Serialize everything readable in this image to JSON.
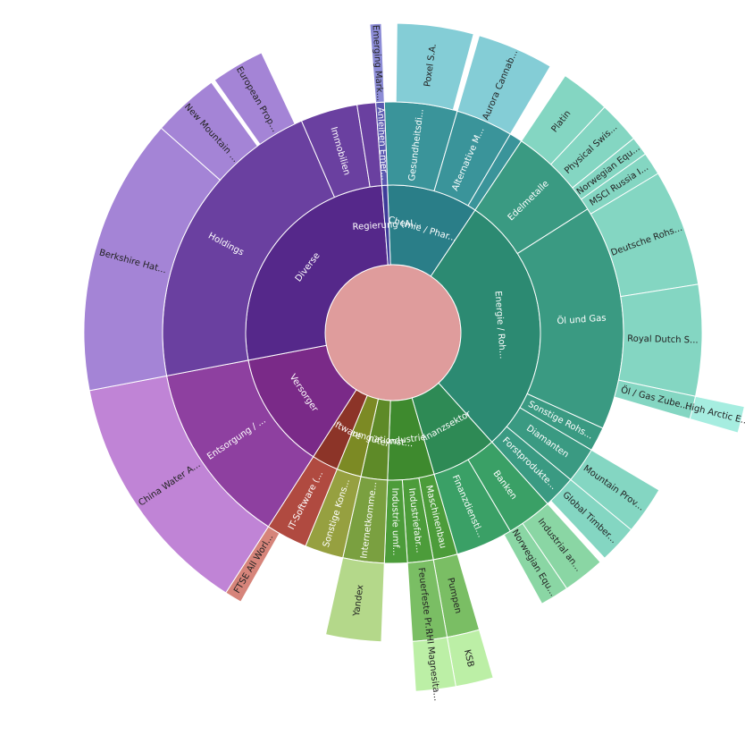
{
  "chart_data": {
    "type": "sunburst",
    "center_color": "#df9c9c",
    "nodes": [
      {
        "id": "energie",
        "name": "Energie / Roh...",
        "parent": null,
        "start": 0.0,
        "end": 0.375,
        "color": "#2c8a72",
        "label": "Energie / Roh..."
      },
      {
        "id": "finanz",
        "name": "Finanzsektor",
        "parent": null,
        "start": 0.375,
        "end": 0.445,
        "color": "#2e8a55",
        "label": "Finanzsektor"
      },
      {
        "id": "industrie",
        "name": "Industrie",
        "parent": null,
        "start": 0.445,
        "end": 0.497,
        "color": "#3e8a2e",
        "label": "Industrie"
      },
      {
        "id": "info",
        "name": "Informationst...",
        "parent": null,
        "start": 0.497,
        "end": 0.525,
        "color": "#5e8a28",
        "label": "Informationst..."
      },
      {
        "id": "konsum",
        "name": "Konsumgüter",
        "parent": null,
        "start": 0.525,
        "end": 0.56,
        "color": "#7c8a24",
        "label": "Konsumgüter"
      },
      {
        "id": "software",
        "name": "Software",
        "parent": null,
        "start": 0.56,
        "end": 0.59,
        "color": "#8c3428",
        "label": "Software"
      },
      {
        "id": "versorger",
        "name": "Versorger",
        "parent": null,
        "start": 0.59,
        "end": 0.715,
        "color": "#7a2a88",
        "label": "Versorger"
      },
      {
        "id": "diverse",
        "name": "Diverse",
        "parent": null,
        "start": 0.715,
        "end": 0.988,
        "color": "#55288a",
        "label": "Diverse"
      },
      {
        "id": "regierung",
        "name": "Regierung (Al...",
        "parent": null,
        "start": 0.988,
        "end": 1.0,
        "color": "#3e3c9a",
        "label": "Regierung (Al..."
      },
      {
        "id": "chemie",
        "name": "Chemie / Phar...",
        "parent": null,
        "start": 0.0,
        "end": 0.0,
        "color": "#2a7e88",
        "label": ""
      },
      {
        "id": "oel_gas",
        "name": "Öl und Gas",
        "parent": "energie",
        "start": 0.04,
        "end": 0.318,
        "color": "#3a9a82",
        "label": "Öl und Gas"
      },
      {
        "id": "edelmetalle",
        "name": "Edelmetalle",
        "parent": "energie",
        "start": 0.0,
        "end": 0.04,
        "color": "#3a9a82",
        "label": "Edelmetalle"
      },
      {
        "id": "sonst_rohs",
        "name": "Sonstige Rohs...",
        "parent": "energie",
        "start": 0.318,
        "end": 0.335,
        "color": "#3a9a82",
        "label": "Sonstige Rohs..."
      },
      {
        "id": "diamanten",
        "name": "Diamanten",
        "parent": "energie",
        "start": 0.335,
        "end": 0.36,
        "color": "#3a9a82",
        "label": "Diamanten"
      },
      {
        "id": "forst",
        "name": "Forstprodukte...",
        "parent": "energie",
        "start": 0.36,
        "end": 0.375,
        "color": "#3a9a82",
        "label": "Forstprodukte..."
      }
    ],
    "rings": {
      "ring1": [
        {
          "name": "Chemie / Phar...",
          "a0": -0.006,
          "a1": 0.094,
          "color": "#2a7e88"
        },
        {
          "name": "Energie / Roh...",
          "a0": 0.094,
          "a1": 0.383,
          "color": "#2c8a72"
        },
        {
          "name": "Finanzsektor",
          "a0": 0.383,
          "a1": 0.455,
          "color": "#2e8a55"
        },
        {
          "name": "Industrie",
          "a0": 0.455,
          "a1": 0.506,
          "color": "#3e8a2e"
        },
        {
          "name": "Informationst...",
          "a0": 0.506,
          "a1": 0.535,
          "color": "#5e8a28"
        },
        {
          "name": "Konsumgüter",
          "a0": 0.535,
          "a1": 0.562,
          "color": "#7c8a24"
        },
        {
          "name": "Software",
          "a0": 0.562,
          "a1": 0.591,
          "color": "#8c3428"
        },
        {
          "name": "Versorger",
          "a0": 0.591,
          "a1": 0.72,
          "color": "#7a2a88"
        },
        {
          "name": "Diverse",
          "a0": 0.72,
          "a1": 0.988,
          "color": "#55288a"
        },
        {
          "name": "Regierung (Al...",
          "a0": 0.988,
          "a1": 0.994,
          "color": "#3e3c9a"
        }
      ],
      "ring2": [
        {
          "name": "Gesundheitsdi...",
          "a0": -0.006,
          "a1": 0.045,
          "color": "#3a949a"
        },
        {
          "name": "Alternative M...",
          "a0": 0.045,
          "a1": 0.085,
          "color": "#3a949a"
        },
        {
          "name": "",
          "a0": 0.085,
          "a1": 0.094,
          "color": "#3a949a"
        },
        {
          "name": "Edelmetalle",
          "a0": 0.094,
          "a1": 0.16,
          "color": "#3a9a82"
        },
        {
          "name": "Öl und Gas",
          "a0": 0.16,
          "a1": 0.318,
          "color": "#3a9a82"
        },
        {
          "name": "Sonstige Rohs...",
          "a0": 0.318,
          "a1": 0.335,
          "color": "#3a9a82"
        },
        {
          "name": "Diamanten",
          "a0": 0.335,
          "a1": 0.36,
          "color": "#3a9a82"
        },
        {
          "name": "Forstprodukte...",
          "a0": 0.36,
          "a1": 0.383,
          "color": "#3a9a82"
        },
        {
          "name": "Banken",
          "a0": 0.383,
          "a1": 0.415,
          "color": "#3aa066"
        },
        {
          "name": "Finanzdienstl...",
          "a0": 0.415,
          "a1": 0.455,
          "color": "#3aa066"
        },
        {
          "name": "Maschinenbau",
          "a0": 0.455,
          "a1": 0.472,
          "color": "#4c9c3a"
        },
        {
          "name": "Industriefabr...",
          "a0": 0.472,
          "a1": 0.49,
          "color": "#4c9c3a"
        },
        {
          "name": "Industrie umf...",
          "a0": 0.49,
          "a1": 0.506,
          "color": "#4c9c3a"
        },
        {
          "name": "Internetkomme...",
          "a0": 0.506,
          "a1": 0.535,
          "color": "#7aa040"
        },
        {
          "name": "Sonstige Kons...",
          "a0": 0.535,
          "a1": 0.562,
          "color": "#96a040"
        },
        {
          "name": "IT-Software (...",
          "a0": 0.562,
          "a1": 0.591,
          "color": "#b04a40"
        },
        {
          "name": "Entsorgung / ...",
          "a0": 0.591,
          "a1": 0.72,
          "color": "#8e40a0"
        },
        {
          "name": "Holdings",
          "a0": 0.72,
          "a1": 0.935,
          "color": "#6a40a0"
        },
        {
          "name": "Immobilien",
          "a0": 0.935,
          "a1": 0.975,
          "color": "#6a40a0"
        },
        {
          "name": "",
          "a0": 0.975,
          "a1": 0.988,
          "color": "#6a40a0"
        },
        {
          "name": "Anleihen Emer...",
          "a0": 0.988,
          "a1": 0.994,
          "color": "#5a58b0"
        }
      ],
      "ring3": [
        {
          "name": "Poxel S.A.",
          "a0": 0.002,
          "a1": 0.042,
          "color": "#84cdd6"
        },
        {
          "name": "Aurora Cannab...",
          "a0": 0.045,
          "a1": 0.085,
          "color": "#84cdd6"
        },
        {
          "name": "Platin",
          "a0": 0.094,
          "a1": 0.12,
          "color": "#84d6c2"
        },
        {
          "name": "Physical Swis...",
          "a0": 0.12,
          "a1": 0.142,
          "color": "#84d6c2"
        },
        {
          "name": "Norwegian Equ...",
          "a0": 0.142,
          "a1": 0.152,
          "color": "#84d6c2"
        },
        {
          "name": "MSCI Russia I...",
          "a0": 0.152,
          "a1": 0.164,
          "color": "#84d6c2"
        },
        {
          "name": "Deutsche Rohs...",
          "a0": 0.164,
          "a1": 0.225,
          "color": "#84d6c2"
        },
        {
          "name": "Royal Dutch S...",
          "a0": 0.225,
          "a1": 0.283,
          "color": "#84d6c2"
        },
        {
          "name": "Öl / Gas Zube...",
          "a0": 0.283,
          "a1": 0.295,
          "color": "#84d6c2"
        },
        {
          "name": "Mountain Prov...",
          "a0": 0.335,
          "a1": 0.36,
          "color": "#84d6c2"
        },
        {
          "name": "Global Timber...",
          "a0": 0.36,
          "a1": 0.38,
          "color": "#84d6c2"
        },
        {
          "name": "Industrial an...",
          "a0": 0.383,
          "a1": 0.405,
          "color": "#8ad6a4"
        },
        {
          "name": "Norwegian Equ...",
          "a0": 0.405,
          "a1": 0.42,
          "color": "#8ad6a4"
        },
        {
          "name": "Pumpen",
          "a0": 0.455,
          "a1": 0.472,
          "color": "#7abe64"
        },
        {
          "name": "Feuerfeste Pr...",
          "a0": 0.472,
          "a1": 0.49,
          "color": "#7abe64"
        },
        {
          "name": "Yandex",
          "a0": 0.506,
          "a1": 0.535,
          "color": "#b4d88a"
        },
        {
          "name": "FTSE All Worl...",
          "a0": 0.582,
          "a1": 0.591,
          "color": "#d6847a"
        },
        {
          "name": "China Water A...",
          "a0": 0.591,
          "a1": 0.72,
          "color": "#c084d6"
        },
        {
          "name": "Berkshire Hat...",
          "a0": 0.72,
          "a1": 0.865,
          "color": "#a484d6"
        },
        {
          "name": "New Mountain ...",
          "a0": 0.865,
          "a1": 0.9,
          "color": "#a484d6"
        },
        {
          "name": "European Prop...",
          "a0": 0.902,
          "a1": 0.93,
          "color": "#a484d6"
        },
        {
          "name": "Emerging Mark...",
          "a0": 0.988,
          "a1": 0.994,
          "color": "#8c8cd6"
        }
      ],
      "ring4": [
        {
          "name": "High Arctic E...",
          "a0": 0.283,
          "a1": 0.295,
          "color": "#a6ede0"
        },
        {
          "name": "KSB",
          "a0": 0.455,
          "a1": 0.472,
          "color": "#bcefa6"
        },
        {
          "name": "RHI Magnesita...",
          "a0": 0.472,
          "a1": 0.49,
          "color": "#bcefa6"
        }
      ]
    },
    "center_label": ""
  }
}
